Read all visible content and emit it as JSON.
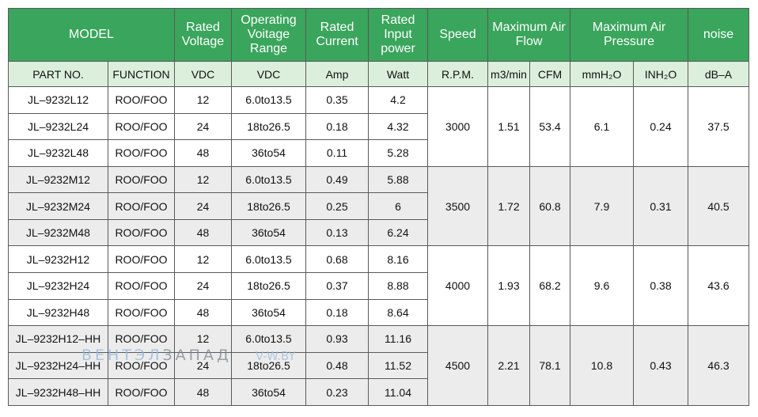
{
  "headers": {
    "model": "MODEL",
    "rated_voltage": "Rated Voltage",
    "operating_voltage_range": "Operating Voitage Range",
    "rated_current": "Rated Current",
    "rated_input_power": "Rated Input power",
    "speed": "Speed",
    "max_air_flow": "Maximum Air Flow",
    "max_air_pressure": "Maximum Air Pressure",
    "noise": "noise"
  },
  "units": {
    "part_no": "PART NO.",
    "function": "FUNCTION",
    "rated_voltage": "VDC",
    "operating_voltage": "VDC",
    "current": "Amp",
    "power": "Watt",
    "speed": "R.P.M.",
    "flow_m3": "m3/min",
    "flow_cfm": "CFM",
    "pressure_mm": "mmH₂O",
    "pressure_in": "INH₂O",
    "noise": "dB–A"
  },
  "groups": [
    {
      "speed": "3000",
      "flow_m3": "1.51",
      "flow_cfm": "53.4",
      "pressure_mm": "6.1",
      "pressure_in": "0.24",
      "noise": "37.5",
      "rows": [
        {
          "part": "JL–9232L12",
          "func": "ROO/FOO",
          "v": "12",
          "range": "6.0to13.5",
          "amp": "0.35",
          "watt": "4.2"
        },
        {
          "part": "JL–9232L24",
          "func": "ROO/FOO",
          "v": "24",
          "range": "18to26.5",
          "amp": "0.18",
          "watt": "4.32"
        },
        {
          "part": "JL–9232L48",
          "func": "ROO/FOO",
          "v": "48",
          "range": "36to54",
          "amp": "0.11",
          "watt": "5.28"
        }
      ]
    },
    {
      "speed": "3500",
      "flow_m3": "1.72",
      "flow_cfm": "60.8",
      "pressure_mm": "7.9",
      "pressure_in": "0.31",
      "noise": "40.5",
      "rows": [
        {
          "part": "JL–9232M12",
          "func": "ROO/FOO",
          "v": "12",
          "range": "6.0to13.5",
          "amp": "0.49",
          "watt": "5.88"
        },
        {
          "part": "JL–9232M24",
          "func": "ROO/FOO",
          "v": "24",
          "range": "18to26.5",
          "amp": "0.25",
          "watt": "6"
        },
        {
          "part": "JL–9232M48",
          "func": "ROO/FOO",
          "v": "48",
          "range": "36to54",
          "amp": "0.13",
          "watt": "6.24"
        }
      ]
    },
    {
      "speed": "4000",
      "flow_m3": "1.93",
      "flow_cfm": "68.2",
      "pressure_mm": "9.6",
      "pressure_in": "0.38",
      "noise": "43.6",
      "rows": [
        {
          "part": "JL–9232H12",
          "func": "ROO/FOO",
          "v": "12",
          "range": "6.0to13.5",
          "amp": "0.68",
          "watt": "8.16"
        },
        {
          "part": "JL–9232H24",
          "func": "ROO/FOO",
          "v": "24",
          "range": "18to26.5",
          "amp": "0.37",
          "watt": "8.88"
        },
        {
          "part": "JL–9232H48",
          "func": "ROO/FOO",
          "v": "48",
          "range": "36to54",
          "amp": "0.18",
          "watt": "8.64"
        }
      ]
    },
    {
      "speed": "4500",
      "flow_m3": "2.21",
      "flow_cfm": "78.1",
      "pressure_mm": "10.8",
      "pressure_in": "0.43",
      "noise": "46.3",
      "rows": [
        {
          "part": "JL–9232H12–HH",
          "func": "ROO/FOO",
          "v": "12",
          "range": "6.0to13.5",
          "amp": "0.93",
          "watt": "11.16"
        },
        {
          "part": "JL–9232H24–HH",
          "func": "ROO/FOO",
          "v": "24",
          "range": "18to26.5",
          "amp": "0.48",
          "watt": "11.52"
        },
        {
          "part": "JL–9232H48–HH",
          "func": "ROO/FOO",
          "v": "48",
          "range": "36to54",
          "amp": "0.23",
          "watt": "11.04"
        }
      ]
    }
  ],
  "watermark": {
    "part1": "ВЕНТЭЛ",
    "part2": "ЗАПАД",
    "part3": "V-W.BY"
  }
}
